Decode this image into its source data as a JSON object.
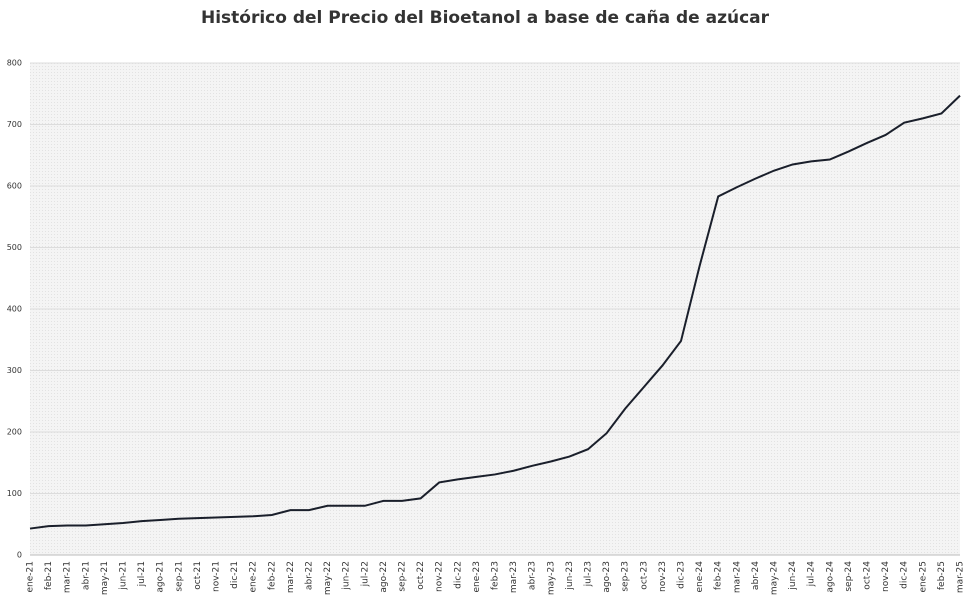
{
  "chart_data": {
    "type": "line",
    "title": "Histórico del Precio del Bioetanol a base de caña de azúcar",
    "categories": [
      "ene-21",
      "feb-21",
      "mar-21",
      "abr-21",
      "may-21",
      "jun-21",
      "jul-21",
      "ago-21",
      "sep-21",
      "oct-21",
      "nov-21",
      "dic-21",
      "ene-22",
      "feb-22",
      "mar-22",
      "abr-22",
      "may-22",
      "jun-22",
      "jul-22",
      "ago-22",
      "sep-22",
      "oct-22",
      "nov-22",
      "dic-22",
      "ene-23",
      "feb-23",
      "mar-23",
      "abr-23",
      "may-23",
      "jun-23",
      "jul-23",
      "ago-23",
      "sep-23",
      "oct-23",
      "nov-23",
      "dic-23",
      "ene-24",
      "feb-24",
      "mar-24",
      "abr-24",
      "may-24",
      "jun-24",
      "jul-24",
      "ago-24",
      "sep-24",
      "oct-24",
      "nov-24",
      "dic-24",
      "ene-25",
      "feb-25",
      "mar-25"
    ],
    "values": [
      43,
      47,
      48,
      48,
      50,
      52,
      55,
      57,
      59,
      60,
      61,
      62,
      63,
      65,
      73,
      73,
      80,
      80,
      80,
      88,
      88,
      92,
      118,
      123,
      127,
      131,
      137,
      145,
      152,
      160,
      172,
      198,
      238,
      273,
      308,
      348,
      470,
      583,
      598,
      612,
      625,
      635,
      640,
      643,
      656,
      670,
      683,
      703,
      710,
      718,
      747
    ],
    "color": "#1a1f2b",
    "ylim": [
      0,
      800
    ],
    "yticks": [
      0,
      100,
      200,
      300,
      400,
      500,
      600,
      700,
      800
    ],
    "grid": true
  }
}
